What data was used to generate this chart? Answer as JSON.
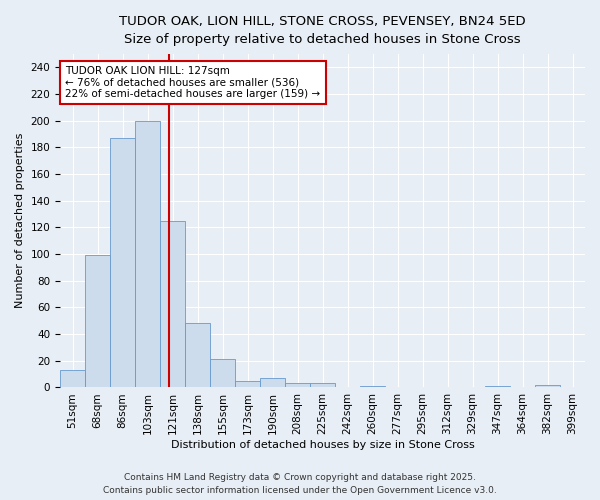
{
  "title_line1": "TUDOR OAK, LION HILL, STONE CROSS, PEVENSEY, BN24 5ED",
  "title_line2": "Size of property relative to detached houses in Stone Cross",
  "xlabel": "Distribution of detached houses by size in Stone Cross",
  "ylabel": "Number of detached properties",
  "bar_labels": [
    "51sqm",
    "68sqm",
    "86sqm",
    "103sqm",
    "121sqm",
    "138sqm",
    "155sqm",
    "173sqm",
    "190sqm",
    "208sqm",
    "225sqm",
    "242sqm",
    "260sqm",
    "277sqm",
    "295sqm",
    "312sqm",
    "329sqm",
    "347sqm",
    "364sqm",
    "382sqm",
    "399sqm"
  ],
  "bar_heights": [
    13,
    99,
    187,
    200,
    125,
    48,
    21,
    5,
    7,
    3,
    3,
    0,
    1,
    0,
    0,
    0,
    0,
    1,
    0,
    2,
    0
  ],
  "bar_color": "#ccdcec",
  "bar_edge_color": "#6699cc",
  "vline_color": "#cc0000",
  "annotation_title": "TUDOR OAK LION HILL: 127sqm",
  "annotation_line2": "← 76% of detached houses are smaller (536)",
  "annotation_line3": "22% of semi-detached houses are larger (159) →",
  "annotation_box_color": "#ffffff",
  "annotation_box_edge": "#cc0000",
  "ylim": [
    0,
    250
  ],
  "yticks": [
    0,
    20,
    40,
    60,
    80,
    100,
    120,
    140,
    160,
    180,
    200,
    220,
    240
  ],
  "background_color": "#e8eef5",
  "grid_color": "#ffffff",
  "footer_line1": "Contains HM Land Registry data © Crown copyright and database right 2025.",
  "footer_line2": "Contains public sector information licensed under the Open Government Licence v3.0.",
  "title_fontsize": 9.5,
  "subtitle_fontsize": 8.5,
  "axis_label_fontsize": 8,
  "tick_fontsize": 7.5,
  "annotation_fontsize": 7.5,
  "footer_fontsize": 6.5
}
